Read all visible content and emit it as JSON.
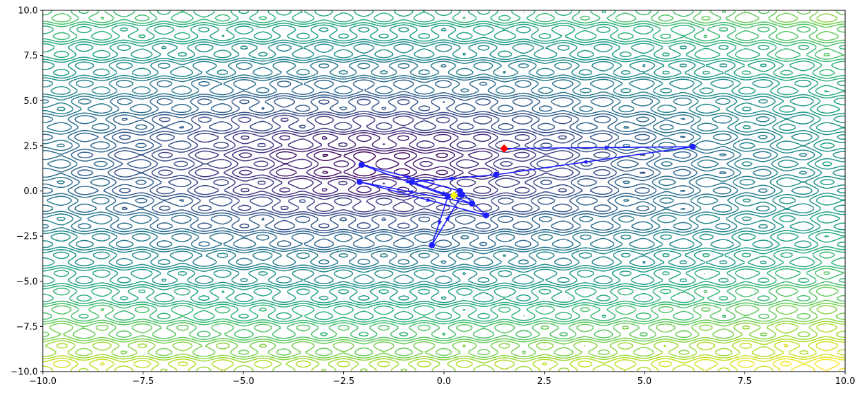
{
  "chart_data": {
    "type": "contour",
    "title": "",
    "xlabel": "",
    "ylabel": "",
    "xlim": [
      -10,
      10
    ],
    "ylim": [
      -10,
      10
    ],
    "x_ticks": [
      -10.0,
      -7.5,
      -5.0,
      -2.5,
      0.0,
      2.5,
      5.0,
      7.5,
      10.0
    ],
    "y_ticks": [
      -10.0,
      -7.5,
      -5.0,
      -2.5,
      0.0,
      2.5,
      5.0,
      7.5,
      10.0
    ],
    "x_tick_labels": [
      "−10.0",
      "−7.5",
      "−5.0",
      "−2.5",
      "0.0",
      "2.5",
      "5.0",
      "7.5",
      "10.0"
    ],
    "y_tick_labels": [
      "−10.0",
      "−7.5",
      "−5.0",
      "−2.5",
      "0.0",
      "2.5",
      "5.0",
      "7.5",
      "10.0"
    ],
    "grid": false,
    "legend": "none",
    "contour_field": {
      "colormap": "viridis",
      "minimum_location": [
        -1.8,
        1.5
      ],
      "x_ripple_period": 1.0,
      "y_ripple_period": 1.0
    },
    "path": {
      "color": "#1f1fff",
      "points": [
        {
          "x": 1.5,
          "y": 2.35
        },
        {
          "x": 6.2,
          "y": 2.45
        },
        {
          "x": 1.3,
          "y": 0.9
        },
        {
          "x": -0.8,
          "y": 0.5
        },
        {
          "x": 0.7,
          "y": -0.7
        },
        {
          "x": -2.1,
          "y": 0.5
        },
        {
          "x": 1.05,
          "y": -1.35
        },
        {
          "x": 0.4,
          "y": 0.0
        },
        {
          "x": -2.05,
          "y": 1.45
        },
        {
          "x": 0.1,
          "y": -0.3
        },
        {
          "x": -0.3,
          "y": -3.0
        },
        {
          "x": 0.45,
          "y": -0.2
        },
        {
          "x": 0.25,
          "y": -0.25
        }
      ],
      "start_point": {
        "x": 1.5,
        "y": 2.35,
        "color": "#ff0000"
      },
      "end_point": {
        "x": 0.25,
        "y": -0.25,
        "color": "#ffff00"
      }
    }
  }
}
